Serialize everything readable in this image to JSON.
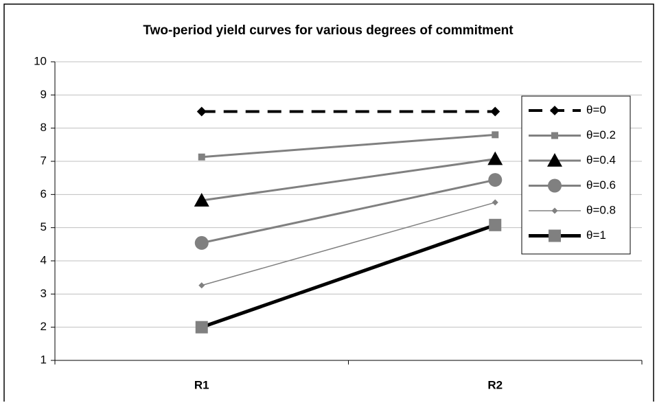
{
  "chart_data": {
    "type": "line",
    "title": "Two-period yield curves for various degrees of commitment",
    "categories": [
      "R1",
      "R2"
    ],
    "ylim": [
      1,
      10
    ],
    "yticks": [
      1,
      2,
      3,
      4,
      5,
      6,
      7,
      8,
      9,
      10
    ],
    "grid": true,
    "legend": "right",
    "series": [
      {
        "name": "θ=0",
        "color": "#000000",
        "marker": "diamond",
        "marker_color": "#000000",
        "dashed": true,
        "values": [
          8.5,
          8.5
        ]
      },
      {
        "name": "θ=0.2",
        "color": "#808080",
        "marker": "square",
        "marker_color": "#808080",
        "values": [
          7.13,
          7.8
        ]
      },
      {
        "name": "θ=0.4",
        "color": "#808080",
        "marker": "triangle",
        "marker_color": "#000000",
        "values": [
          5.82,
          7.07
        ]
      },
      {
        "name": "θ=0.6",
        "color": "#808080",
        "marker": "circle",
        "marker_color": "#808080",
        "values": [
          4.54,
          6.44
        ]
      },
      {
        "name": "θ=0.8",
        "color": "#808080",
        "marker": "diamond",
        "marker_color": "#808080",
        "values": [
          3.26,
          5.76
        ]
      },
      {
        "name": "θ=1",
        "color": "#000000",
        "marker": "square",
        "marker_color": "#808080",
        "values": [
          2,
          5.08
        ]
      }
    ]
  }
}
